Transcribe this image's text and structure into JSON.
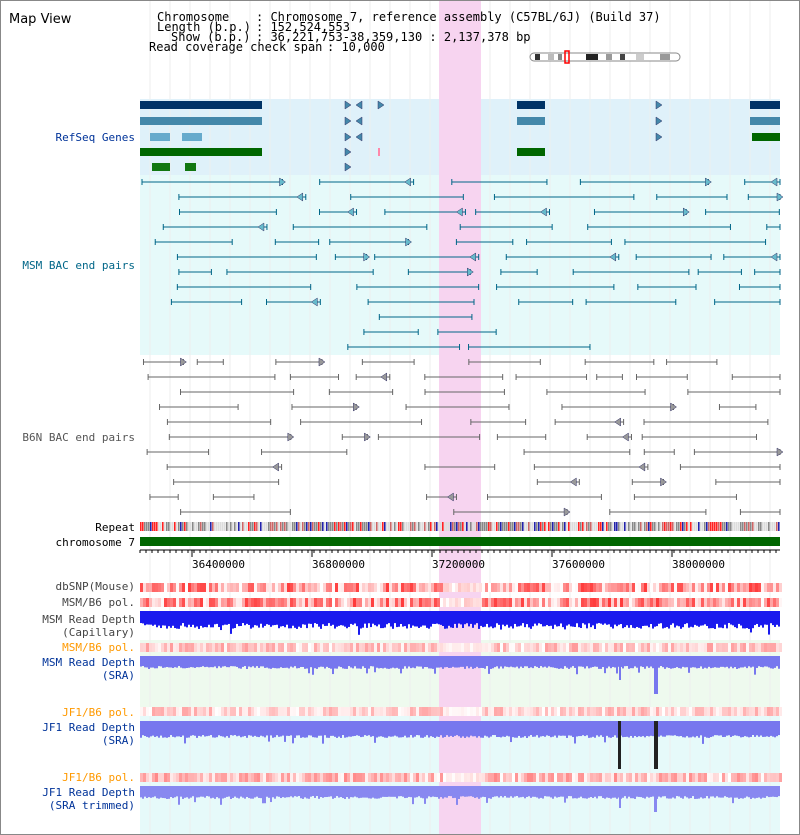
{
  "title": "Map View",
  "header": {
    "chromosome_label": "Chromosome",
    "chromosome_value": ": Chromosome 7, reference assembly (C57BL/6J) (Build 37)",
    "length_label": "Length (b.p.)",
    "length_value": ": 152,524,553",
    "show_label": "Show (b.p.)",
    "show_value": ": 36,221,753-38,359,130 : 2,137,378 bp",
    "coverage_label": "Read coverage check span",
    "coverage_value": ": 10,000"
  },
  "tracks": {
    "refseq": "RefSeq Genes",
    "msm_bac": "MSM BAC end pairs",
    "b6n_bac": "B6N BAC end pairs",
    "repeat": "Repeat",
    "chromosome": "chromosome 7",
    "dbsnp": "dbSNP(Mouse)",
    "msm_b6_pol_1": "MSM/B6 pol.",
    "msm_depth_cap_1": "MSM Read Depth",
    "msm_depth_cap_2": "(Capillary)",
    "msm_b6_pol_2": "MSM/B6 pol.",
    "msm_depth_sra_1": "MSM Read Depth",
    "msm_depth_sra_2": "(SRA)",
    "jf1_b6_pol_1": "JF1/B6 pol.",
    "jf1_depth_sra_1": "JF1 Read Depth",
    "jf1_depth_sra_2": "(SRA)",
    "jf1_b6_pol_2": "JF1/B6 pol.",
    "jf1_depth_trim_1": "JF1 Read Depth",
    "jf1_depth_trim_2": "(SRA trimmed)"
  },
  "axis": {
    "ticks": [
      "36400000",
      "36800000",
      "37200000",
      "37600000",
      "38000000"
    ]
  },
  "colors": {
    "refseq_bg": "#dff1fa",
    "msm_bg": "#e6fafa",
    "highlight": "#f7d4f0",
    "msm_label": "#003399",
    "pol_label": "#ff9900",
    "chromosome": "#006600"
  }
}
